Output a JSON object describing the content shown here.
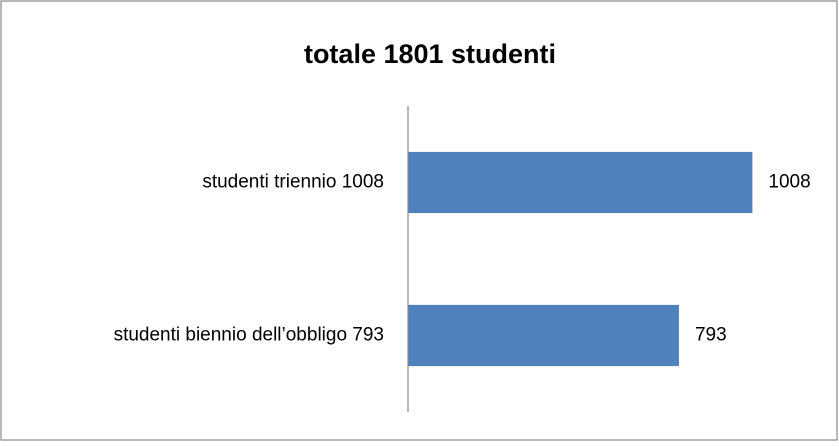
{
  "chart_data": {
    "type": "barh",
    "title": "totale 1801 studenti",
    "categories": [
      "studenti triennio 1008",
      "studenti biennio dell’obbligo 793"
    ],
    "values": [
      1008,
      793
    ],
    "color": "#4f81bd",
    "xlim": [
      0,
      1200
    ]
  }
}
